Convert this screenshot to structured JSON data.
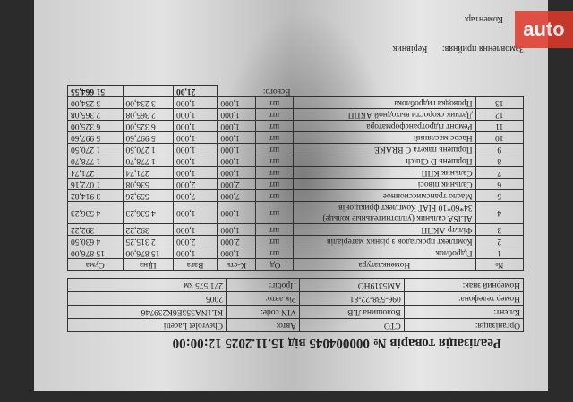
{
  "document": {
    "title": "Реалізація товарів  № 000004045 від 15.11.2025 12:00:00",
    "info": [
      [
        "Організація:",
        "СТО",
        "Авто:",
        "Chevrolet Lacetti"
      ],
      [
        "Клієнт:",
        "Волошина Л.В",
        "VIN code:",
        "KL1NA353E6K239746"
      ],
      [
        "Номер телефона:",
        "096-538-22-81",
        "Рік авто:",
        "2005"
      ],
      [
        "Номерний знак:",
        "AM5319HO",
        "Пробіг:",
        "271 575 км"
      ]
    ],
    "columns": [
      "№",
      "Номенклатура",
      "Од.",
      "К-сть",
      "Вага",
      "Ціна",
      "Сума"
    ],
    "rows": [
      [
        "1",
        "Гідроблок",
        "шт",
        "1,000",
        "1,000",
        "15 876,00",
        "15 876,00"
      ],
      [
        "2",
        "Комплект прокладок з різних матеріалів",
        "шт",
        "2,000",
        "2,000",
        "2 315,25",
        "4 630,50"
      ],
      [
        "3",
        "Фільтр АКПП",
        "шт",
        "1,000",
        "1,000",
        "392,22",
        "392,22"
      ],
      [
        "4",
        "ALISA сальник (уплотнительные кольце) 34*60*10 FIAT Комплект фрикціонів",
        "шт",
        "1,000",
        "1,000",
        "4 536,23",
        "4 536,23"
      ],
      [
        "5",
        "Масло трансмиссионное",
        "шт",
        "7,000",
        "7,000",
        "559,26",
        "3 914,82"
      ],
      [
        "6",
        "Сальник півосі",
        "шт",
        "2,000",
        "2,000",
        "536,08",
        "1 072,16"
      ],
      [
        "7",
        "Сальник КПП",
        "шт",
        "1,000",
        "1,000",
        "271,74",
        "271,74"
      ],
      [
        "8",
        "Поршень D Clutch",
        "шт",
        "1,000",
        "1,000",
        "1 778,70",
        "1 778,70"
      ],
      [
        "9",
        "Поршень пакета C BRAKE",
        "шт",
        "1,000",
        "1,000",
        "1 270,50",
        "1 270,50"
      ],
      [
        "10",
        "Насос масляний",
        "шт",
        "1,000",
        "1,000",
        "5 997,60",
        "5 997,60"
      ],
      [
        "11",
        "Ремонт гідротрансформатора",
        "шт",
        "1,000",
        "1,000",
        "6 325,00",
        "6 325,00"
      ],
      [
        "12",
        "Датчик скорости выходной АКПП",
        "шт",
        "1,000",
        "1,000",
        "2 365,08",
        "2 365,08"
      ],
      [
        "13",
        "Проводка гидроблока",
        "шт",
        "1,000",
        "1,000",
        "3 234,00",
        "3 234,00"
      ]
    ],
    "total_label": "Всього:",
    "total_qty": "21,00",
    "total_sum": "51 664,55",
    "accepted_label": "Замовлення прийняв:",
    "accepted_value": "Керівник",
    "comment_label": "Коментар:"
  },
  "watermark": "auto"
}
